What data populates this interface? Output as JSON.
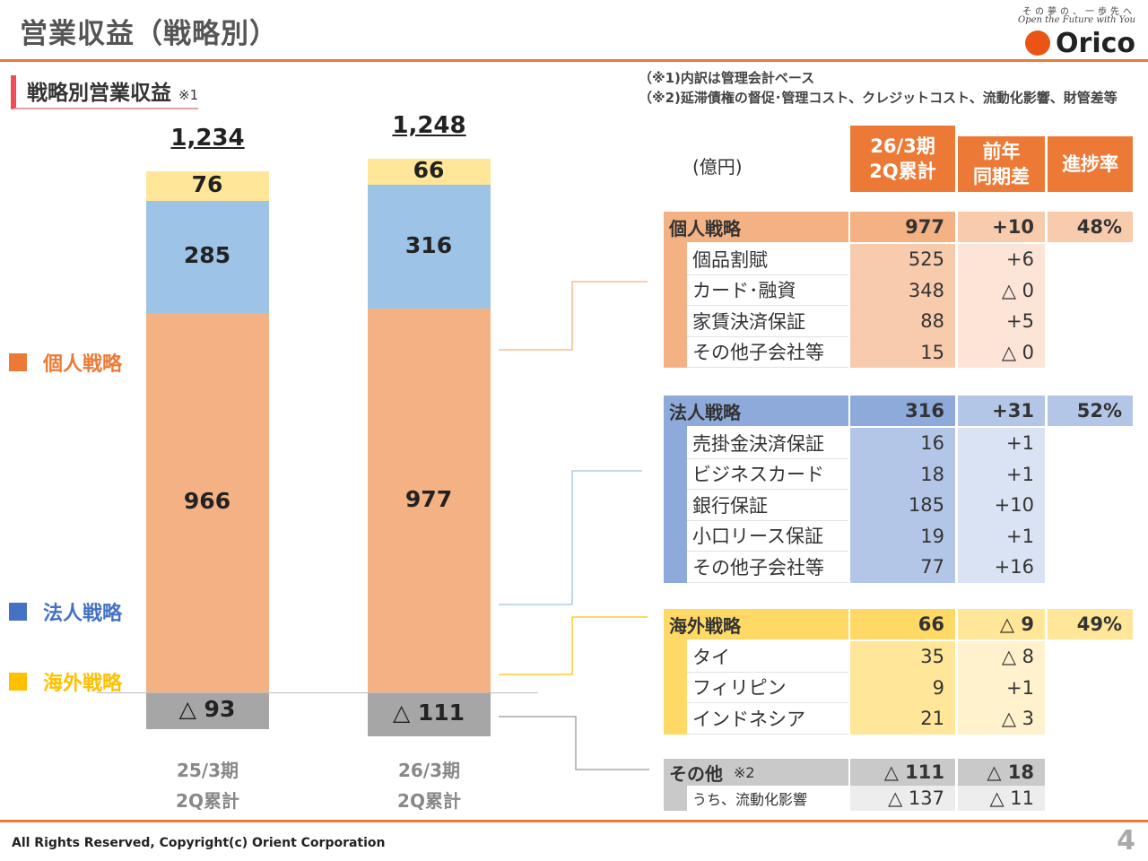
{
  "header": {
    "title": "営業収益（戦略別）",
    "tagline_jp": "その夢の、一歩先へ",
    "tagline_en": "Open the Future with You",
    "logo_text": "Orico"
  },
  "section": {
    "heading": "戦略別営業収益",
    "note": "※1"
  },
  "notes": [
    "（※1)内訳は管理会計ベース",
    "（※2)延滞債権の督促･管理コスト、クレジットコスト、流動化影響、財管差等"
  ],
  "legend": [
    {
      "label": "個人戦略",
      "color": "#ec7a36"
    },
    {
      "label": "法人戦略",
      "color": "#4472c4"
    },
    {
      "label": "海外戦略",
      "color": "#ffc000"
    }
  ],
  "chart_data": {
    "type": "bar",
    "stacked": true,
    "categories": [
      "25/3期 2Q累計",
      "26/3期 2Q累計"
    ],
    "category_lines": [
      [
        "25/3期",
        "2Q累計"
      ],
      [
        "26/3期",
        "2Q累計"
      ]
    ],
    "totals": [
      "1,234",
      "1,248"
    ],
    "series": [
      {
        "name": "個人戦略",
        "values": [
          966,
          977
        ],
        "labels": [
          "966",
          "977"
        ],
        "color": "#f4b183"
      },
      {
        "name": "法人戦略",
        "values": [
          285,
          316
        ],
        "labels": [
          "285",
          "316"
        ],
        "color": "#9dc3e6"
      },
      {
        "name": "海外戦略",
        "values": [
          76,
          66
        ],
        "labels": [
          "76",
          "66"
        ],
        "color": "#ffe699"
      },
      {
        "name": "その他",
        "values": [
          -93,
          -111
        ],
        "labels": [
          "△ 93",
          "△ 111"
        ],
        "color": "#a6a6a6"
      }
    ]
  },
  "table": {
    "unit": "(億円)",
    "headers": [
      "26/3期 2Q累計",
      "前年 同期差",
      "進捗率"
    ],
    "header_lines": [
      [
        "26/3期",
        "2Q累計"
      ],
      [
        "前年",
        "同期差"
      ],
      [
        "進捗率"
      ]
    ],
    "groups": [
      {
        "name": "個人戦略",
        "value": "977",
        "diff": "+10",
        "progress": "48%",
        "colors": {
          "dark": "#f4b183",
          "mid": "#f8cbad",
          "light": "#fce4d6"
        },
        "rows": [
          {
            "name": "個品割賦",
            "value": "525",
            "diff": "+6"
          },
          {
            "name": "カード･融資",
            "value": "348",
            "diff": "△ 0"
          },
          {
            "name": "家賃決済保証",
            "value": "88",
            "diff": "+5"
          },
          {
            "name": "その他子会社等",
            "value": "15",
            "diff": "△ 0"
          }
        ]
      },
      {
        "name": "法人戦略",
        "value": "316",
        "diff": "+31",
        "progress": "52%",
        "colors": {
          "dark": "#8eaadb",
          "mid": "#b4c6e7",
          "light": "#dae3f3"
        },
        "rows": [
          {
            "name": "売掛金決済保証",
            "value": "16",
            "diff": "+1"
          },
          {
            "name": "ビジネスカード",
            "value": "18",
            "diff": "+1"
          },
          {
            "name": "銀行保証",
            "value": "185",
            "diff": "+10"
          },
          {
            "name": "小口リース保証",
            "value": "19",
            "diff": "+1"
          },
          {
            "name": "その他子会社等",
            "value": "77",
            "diff": "+16"
          }
        ]
      },
      {
        "name": "海外戦略",
        "value": "66",
        "diff": "△ 9",
        "progress": "49%",
        "colors": {
          "dark": "#ffd966",
          "mid": "#ffe699",
          "light": "#fff2cc"
        },
        "rows": [
          {
            "name": "タイ",
            "value": "35",
            "diff": "△ 8"
          },
          {
            "name": "フィリピン",
            "value": "9",
            "diff": "+1"
          },
          {
            "name": "インドネシア",
            "value": "21",
            "diff": "△ 3"
          }
        ]
      }
    ],
    "other": {
      "name": "その他",
      "note": "※2",
      "value": "△ 111",
      "diff": "△ 18",
      "sub_name": "うち、流動化影響",
      "sub_value": "△ 137",
      "sub_diff": "△ 11"
    }
  },
  "footer": {
    "copyright": "All Rights Reserved, Copyright(c) Orient Corporation",
    "page": "4"
  }
}
